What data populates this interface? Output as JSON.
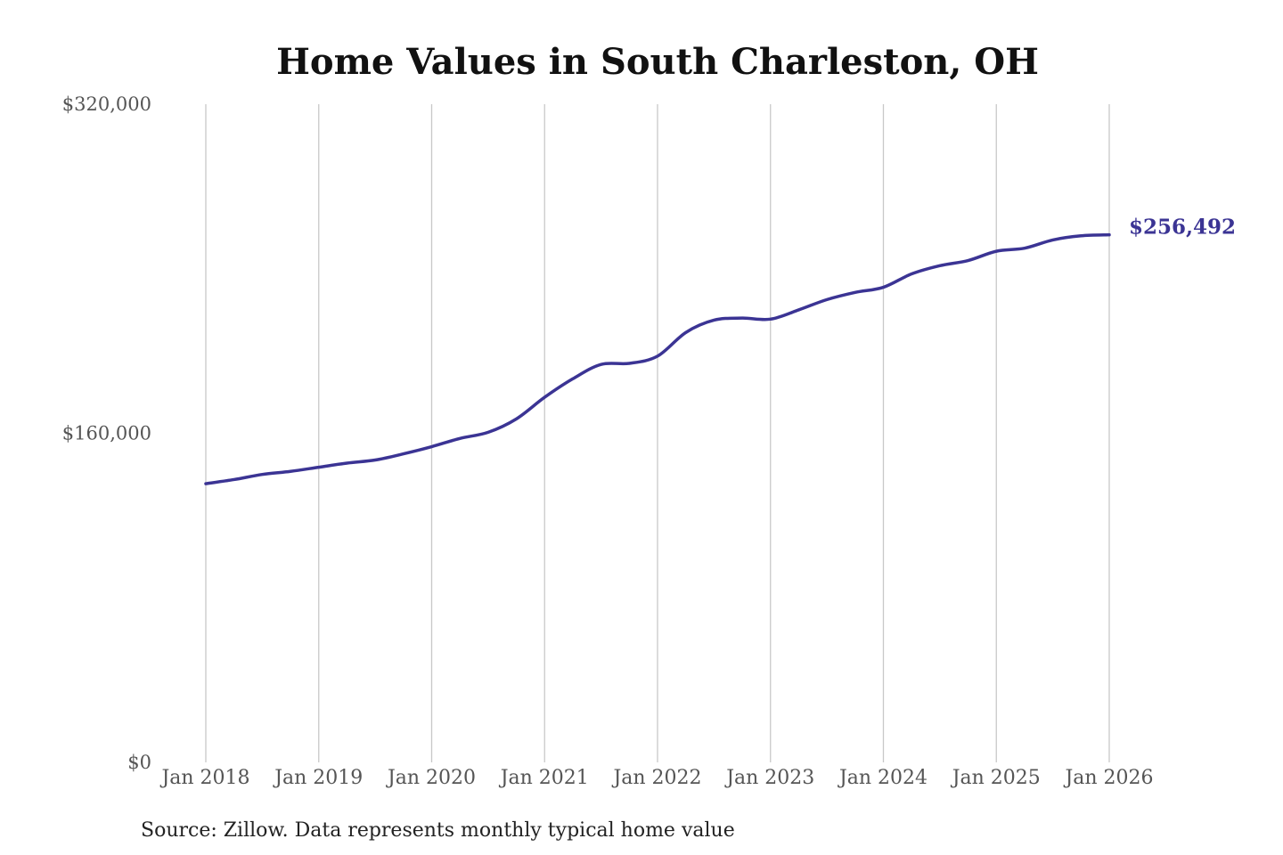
{
  "chart_data": {
    "type": "line",
    "title": "Home Values in South Charleston, OH",
    "xlabel": "",
    "ylabel": "",
    "ylim": [
      0,
      320000
    ],
    "yticks": [
      {
        "value": 0,
        "label": "$0"
      },
      {
        "value": 160000,
        "label": "$160,000"
      },
      {
        "value": 320000,
        "label": "$320,000"
      }
    ],
    "xticks": [
      {
        "value": 2018,
        "label": "Jan 2018"
      },
      {
        "value": 2019,
        "label": "Jan 2019"
      },
      {
        "value": 2020,
        "label": "Jan 2020"
      },
      {
        "value": 2021,
        "label": "Jan 2021"
      },
      {
        "value": 2022,
        "label": "Jan 2022"
      },
      {
        "value": 2023,
        "label": "Jan 2023"
      },
      {
        "value": 2024,
        "label": "Jan 2024"
      },
      {
        "value": 2025,
        "label": "Jan 2025"
      },
      {
        "value": 2026,
        "label": "Jan 2026"
      }
    ],
    "grid": "vertical",
    "color": "#3b3494",
    "end_label": "$256,492",
    "series": [
      {
        "x": [
          2018.0,
          2018.25,
          2018.5,
          2018.75,
          2019.0,
          2019.25,
          2019.5,
          2019.75,
          2020.0,
          2020.25,
          2020.5,
          2020.75,
          2021.0,
          2021.25,
          2021.5,
          2021.75,
          2022.0,
          2022.25,
          2022.5,
          2022.75,
          2023.0,
          2023.25,
          2023.5,
          2023.75,
          2024.0,
          2024.25,
          2024.5,
          2024.75,
          2025.0,
          2025.25,
          2025.5,
          2025.75,
          2026.0
        ],
        "y": [
          135500,
          137500,
          140000,
          141500,
          143500,
          145500,
          147000,
          150000,
          153500,
          157500,
          160500,
          167000,
          177500,
          186500,
          193500,
          194000,
          197500,
          209000,
          215000,
          216000,
          215500,
          220000,
          225000,
          228500,
          231000,
          237500,
          241500,
          244000,
          248500,
          250000,
          254000,
          256000,
          256492
        ]
      }
    ]
  },
  "source": "Source: Zillow. Data represents monthly typical home value"
}
